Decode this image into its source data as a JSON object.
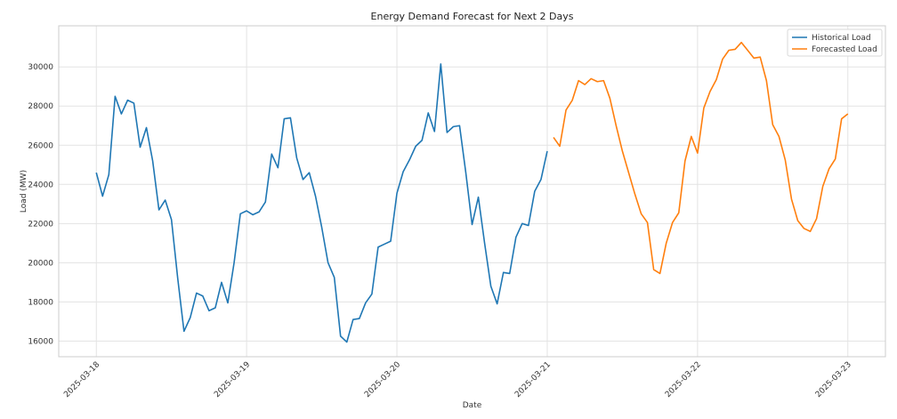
{
  "chart_data": {
    "type": "line",
    "title": "Energy Demand Forecast for Next 2 Days",
    "xlabel": "Date",
    "ylabel": "Load (MW)",
    "grid": true,
    "legend_position": "top-right",
    "xlim_days": [
      -0.25,
      5.25
    ],
    "ylim": [
      15200,
      32100
    ],
    "x_ticks": [
      {
        "day": 0,
        "label": "2025-03-18"
      },
      {
        "day": 1,
        "label": "2025-03-19"
      },
      {
        "day": 2,
        "label": "2025-03-20"
      },
      {
        "day": 3,
        "label": "2025-03-21"
      },
      {
        "day": 4,
        "label": "2025-03-22"
      },
      {
        "day": 5,
        "label": "2025-03-23"
      }
    ],
    "y_ticks": [
      16000,
      18000,
      20000,
      22000,
      24000,
      26000,
      28000,
      30000
    ],
    "series": [
      {
        "name": "Historical Load",
        "color": "#1f77b4",
        "start_day": 0,
        "step_hours": 1,
        "values": [
          24600,
          23400,
          24500,
          28500,
          27600,
          28300,
          28150,
          25900,
          26900,
          25200,
          22700,
          23200,
          22200,
          19200,
          16500,
          17200,
          18450,
          18300,
          17550,
          17700,
          19000,
          17950,
          20000,
          22500,
          22650,
          22450,
          22600,
          23100,
          25550,
          24850,
          27350,
          27400,
          25350,
          24250,
          24600,
          23400,
          21800,
          20000,
          19250,
          16250,
          15950,
          17100,
          17150,
          17950,
          18400,
          20800,
          20950,
          21100,
          23550,
          24650,
          25250,
          25950,
          26250,
          27650,
          26700,
          30150,
          26650,
          26950,
          27000,
          24600,
          21950,
          23350,
          21000,
          18800,
          17900,
          19500,
          19450,
          21300,
          22000,
          21900,
          23650,
          24250,
          25700
        ]
      },
      {
        "name": "Forecasted Load",
        "color": "#ff7f0e",
        "start_day": 3.0417,
        "step_hours": 1,
        "values": [
          26400,
          25950,
          27800,
          28300,
          29300,
          29100,
          29400,
          29250,
          29300,
          28400,
          27000,
          25700,
          24600,
          23500,
          22500,
          22050,
          19650,
          19450,
          21000,
          22050,
          22550,
          25200,
          26450,
          25600,
          27900,
          28750,
          29350,
          30400,
          30850,
          30900,
          31250,
          30850,
          30450,
          30500,
          29300,
          27050,
          26450,
          25250,
          23250,
          22150,
          21750,
          21600,
          22250,
          23900,
          24800,
          25300,
          27350,
          27600
        ]
      }
    ]
  }
}
